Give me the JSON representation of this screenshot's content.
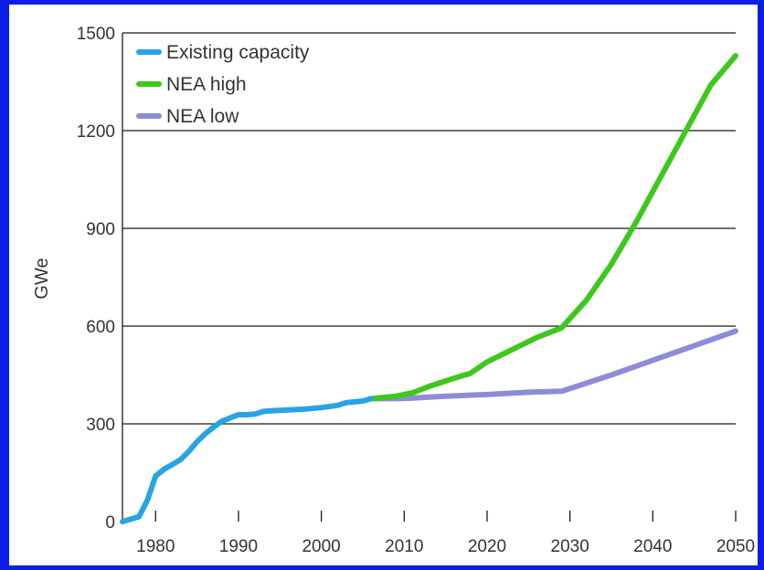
{
  "chart_data": {
    "type": "line",
    "title": "",
    "xlabel": "",
    "ylabel": "GWe",
    "xlim": [
      1976,
      2050
    ],
    "ylim": [
      0,
      1500
    ],
    "x_ticks": [
      1980,
      1990,
      2000,
      2010,
      2020,
      2030,
      2040,
      2050
    ],
    "y_ticks": [
      0,
      300,
      600,
      900,
      1200,
      1500
    ],
    "grid": "horizontal",
    "legend_position": "top-left",
    "series": [
      {
        "name": "Existing capacity",
        "color": "#29a3e6",
        "x": [
          1976,
          1978,
          1979,
          1980,
          1981,
          1982,
          1983,
          1984,
          1985,
          1986,
          1987,
          1988,
          1989,
          1990,
          1991,
          1992,
          1993,
          1994,
          1996,
          1998,
          2000,
          2002,
          2003,
          2005,
          2006
        ],
        "y": [
          0,
          15,
          65,
          140,
          160,
          175,
          190,
          215,
          245,
          270,
          290,
          308,
          318,
          328,
          328,
          330,
          338,
          340,
          343,
          345,
          350,
          357,
          365,
          370,
          377
        ]
      },
      {
        "name": "NEA high",
        "color": "#3ec81e",
        "x": [
          2006,
          2009,
          2011,
          2013,
          2016,
          2018,
          2020,
          2022,
          2024,
          2026,
          2029,
          2032,
          2035,
          2038,
          2041,
          2044,
          2047,
          2050
        ],
        "y": [
          377,
          385,
          395,
          415,
          440,
          455,
          490,
          515,
          540,
          565,
          595,
          680,
          790,
          920,
          1060,
          1200,
          1340,
          1430
        ]
      },
      {
        "name": "NEA low",
        "color": "#8e8bd8",
        "x": [
          2006,
          2010,
          2015,
          2020,
          2025,
          2029,
          2032,
          2035,
          2040,
          2045,
          2050
        ],
        "y": [
          377,
          378,
          385,
          390,
          397,
          400,
          425,
          450,
          495,
          540,
          585
        ]
      }
    ]
  }
}
